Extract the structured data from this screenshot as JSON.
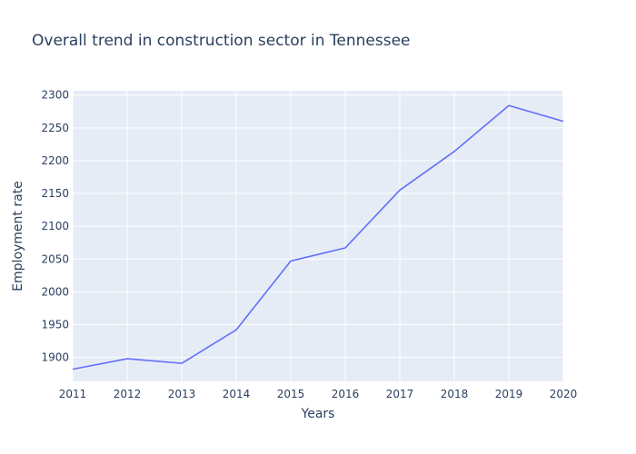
{
  "chart_data": {
    "type": "line",
    "title": "Overall trend in construction sector in Tennessee",
    "xlabel": "Years",
    "ylabel": "Employment rate",
    "x": [
      2011,
      2012,
      2013,
      2014,
      2015,
      2016,
      2017,
      2018,
      2019,
      2020
    ],
    "series": [
      {
        "name": "",
        "values": [
          1882,
          1898,
          1891,
          1942,
          2047,
          2067,
          2155,
          2214,
          2284,
          2260
        ]
      }
    ],
    "xlim": [
      2011,
      2020
    ],
    "ylim": [
      1863.5,
      2306.5
    ],
    "x_ticks": [
      "2011",
      "2012",
      "2013",
      "2014",
      "2015",
      "2016",
      "2017",
      "2018",
      "2019",
      "2020"
    ],
    "y_ticks": [
      "1900",
      "1950",
      "2000",
      "2050",
      "2100",
      "2150",
      "2200",
      "2250",
      "2300"
    ],
    "y_tick_values": [
      1900,
      1950,
      2000,
      2050,
      2100,
      2150,
      2200,
      2250,
      2300
    ],
    "grid": true,
    "legend": "none"
  },
  "colors": {
    "plot_bg": "#e5ecf6",
    "grid": "#ffffff",
    "line": "#636efa",
    "text": "#2a3f5f"
  }
}
